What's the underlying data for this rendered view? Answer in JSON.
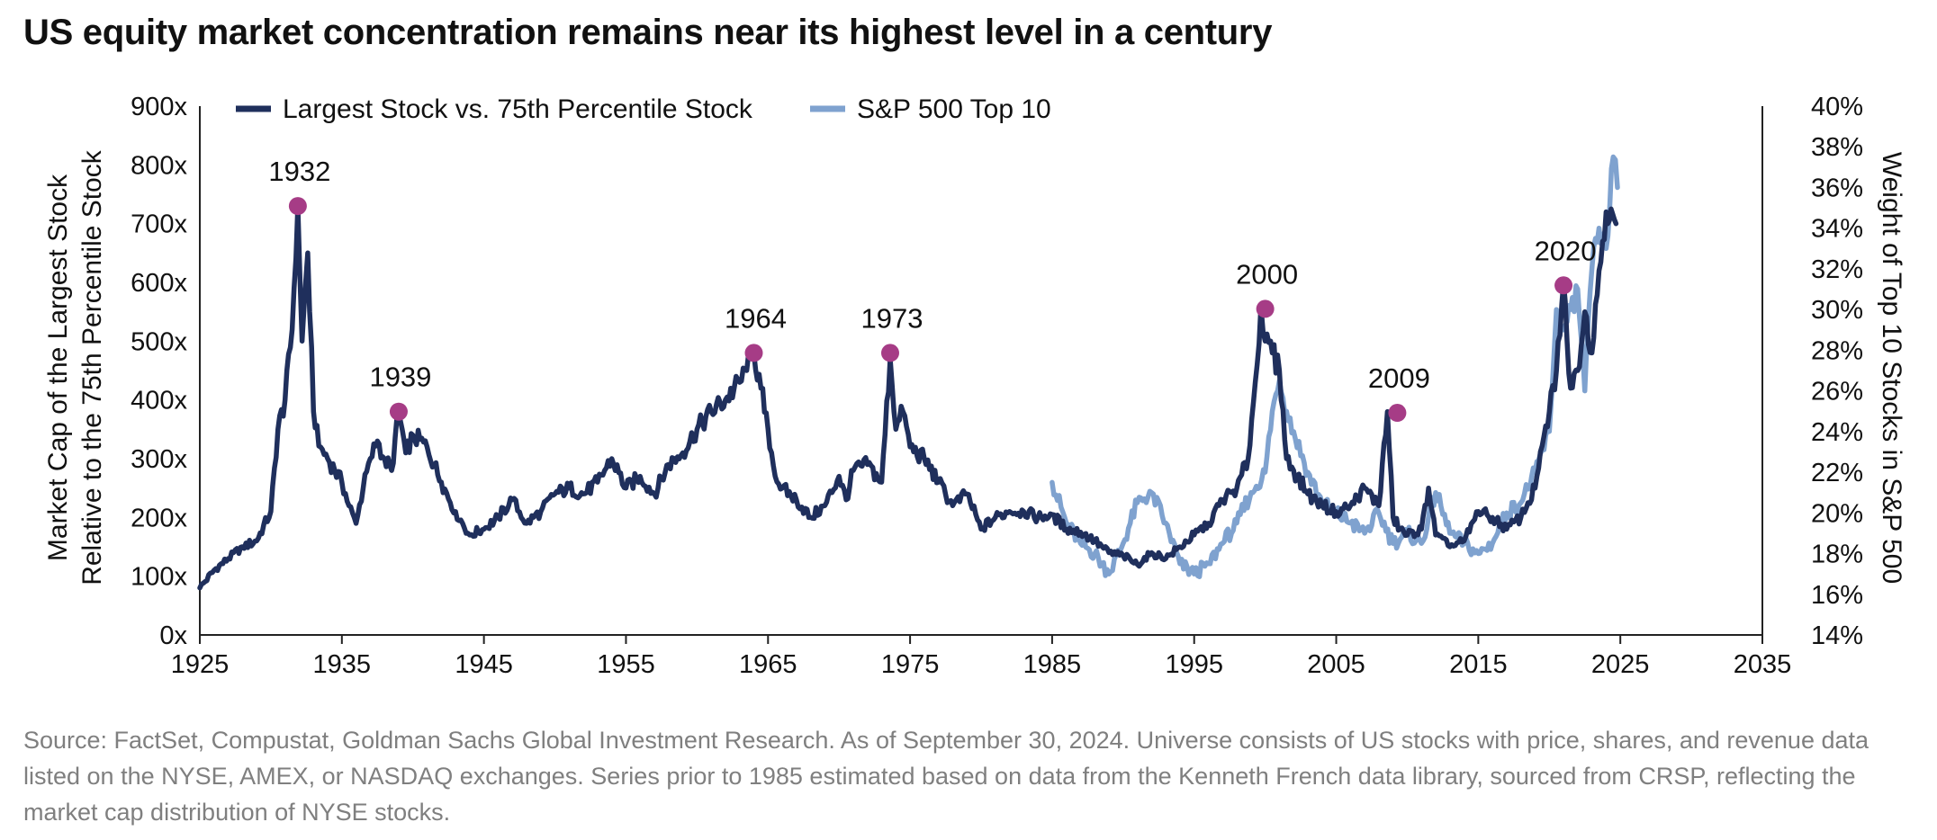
{
  "title": "US equity market concentration remains near its highest level in a century",
  "source": "Source: FactSet, Compustat, Goldman Sachs Global Investment Research. As of September 30, 2024. Universe consists of US stocks with price, shares, and revenue data listed on the NYSE, AMEX, or NASDAQ exchanges. Series prior to 1985 estimated based on data from the Kenneth French data library, sourced from CRSP, reflecting the market cap distribution of NYSE stocks.",
  "colors": {
    "dark_series": "#1f2f5c",
    "light_series": "#7fa2cf",
    "peak_marker": "#a63c86",
    "axis": "#222222"
  },
  "chart_data": {
    "type": "line",
    "title": "US equity market concentration remains near its highest level in a century",
    "xlabel": "",
    "xlim": [
      1925,
      2035
    ],
    "x_ticks": [
      "1925",
      "1935",
      "1945",
      "1955",
      "1965",
      "1975",
      "1985",
      "1995",
      "2005",
      "2015",
      "2025",
      "2035"
    ],
    "ylabel_left": "Market Cap of the Largest Stock Relative to the 75th Percentile Stock",
    "ylabel_left_lines": [
      "Market Cap of the Largest Stock",
      "Relative to the 75th Percentile Stock"
    ],
    "ylim_left": [
      0,
      900
    ],
    "y_ticks_left": [
      "0x",
      "100x",
      "200x",
      "300x",
      "400x",
      "500x",
      "600x",
      "700x",
      "800x",
      "900x"
    ],
    "ylabel_right": "Weight of Top 10 Stocks in S&P 500",
    "ylim_right": [
      14,
      40
    ],
    "y_ticks_right": [
      "14%",
      "16%",
      "18%",
      "20%",
      "22%",
      "24%",
      "26%",
      "28%",
      "30%",
      "32%",
      "34%",
      "36%",
      "38%",
      "40%"
    ],
    "grid": false,
    "legend_position": "top-left",
    "series": [
      {
        "name": "Largest Stock vs. 75th Percentile Stock",
        "axis": "left",
        "color": "#1f2f5c",
        "x": [
          1925,
          1926,
          1927,
          1928,
          1929,
          1930,
          1930.5,
          1931,
          1931.5,
          1931.9,
          1932.2,
          1932.6,
          1933,
          1933.5,
          1934,
          1934.5,
          1935,
          1935.5,
          1936,
          1936.5,
          1937,
          1937.5,
          1938,
          1938.5,
          1939,
          1939.5,
          1940,
          1941,
          1942,
          1943,
          1944,
          1945,
          1946,
          1947,
          1948,
          1949,
          1950,
          1951,
          1952,
          1953,
          1954,
          1955,
          1956,
          1957,
          1958,
          1959,
          1960,
          1961,
          1962,
          1963,
          1963.5,
          1964,
          1964.5,
          1965,
          1965.5,
          1966,
          1967,
          1968,
          1969,
          1970,
          1970.5,
          1971,
          1972,
          1973,
          1973.6,
          1974,
          1974.5,
          1975,
          1976,
          1977,
          1978,
          1979,
          1980,
          1981,
          1982,
          1983,
          1984,
          1985,
          1986,
          1987,
          1988,
          1989,
          1990,
          1991,
          1992,
          1993,
          1994,
          1995,
          1996,
          1997,
          1998,
          1998.8,
          1999.3,
          1999.7,
          2000,
          2000.5,
          2001,
          2001.5,
          2002,
          2003,
          2004,
          2005,
          2006,
          2007,
          2008,
          2008.6,
          2009,
          2009.5,
          2010,
          2011,
          2011.5,
          2012,
          2013,
          2014,
          2015,
          2016,
          2017,
          2018,
          2019,
          2020,
          2020.5,
          2021,
          2021.5,
          2022,
          2022.5,
          2023,
          2023.5,
          2024,
          2024.7
        ],
        "values": [
          80,
          110,
          130,
          150,
          160,
          210,
          350,
          400,
          520,
          730,
          500,
          650,
          380,
          320,
          300,
          280,
          260,
          220,
          190,
          250,
          300,
          330,
          300,
          280,
          380,
          310,
          340,
          320,
          260,
          210,
          170,
          180,
          200,
          230,
          190,
          210,
          240,
          250,
          240,
          260,
          300,
          250,
          270,
          240,
          290,
          310,
          350,
          380,
          400,
          430,
          450,
          480,
          420,
          350,
          270,
          250,
          230,
          200,
          220,
          270,
          230,
          280,
          290,
          260,
          470,
          350,
          380,
          320,
          300,
          260,
          220,
          240,
          180,
          200,
          210,
          210,
          200,
          205,
          180,
          175,
          160,
          140,
          135,
          120,
          140,
          130,
          150,
          170,
          190,
          230,
          250,
          300,
          430,
          560,
          500,
          480,
          450,
          300,
          280,
          240,
          220,
          210,
          220,
          250,
          220,
          380,
          200,
          180,
          170,
          180,
          250,
          170,
          150,
          160,
          210,
          200,
          180,
          200,
          250,
          380,
          450,
          600,
          420,
          450,
          550,
          480,
          620,
          720,
          700
        ],
        "peaks": [
          {
            "label": "1932",
            "x": 1931.9,
            "y": 730
          },
          {
            "label": "1939",
            "x": 1939,
            "y": 380
          },
          {
            "label": "1964",
            "x": 1964,
            "y": 480
          },
          {
            "label": "1973",
            "x": 1973.6,
            "y": 480
          },
          {
            "label": "2000",
            "x": 2000,
            "y": 555
          },
          {
            "label": "2009",
            "x": 2009.3,
            "y": 378
          },
          {
            "label": "2020",
            "x": 2021,
            "y": 595
          }
        ]
      },
      {
        "name": "S&P 500 Top 10",
        "axis": "right",
        "color": "#7fa2cf",
        "x": [
          1985,
          1986,
          1987,
          1988,
          1989,
          1990,
          1991,
          1992,
          1993,
          1994,
          1995,
          1996,
          1997,
          1998,
          1999,
          2000,
          2000.5,
          2001,
          2001.5,
          2002,
          2003,
          2004,
          2005,
          2006,
          2007,
          2008,
          2009,
          2010,
          2011,
          2012,
          2013,
          2014,
          2015,
          2016,
          2017,
          2018,
          2019,
          2020,
          2020.5,
          2021,
          2021.5,
          2022,
          2022.5,
          2023,
          2023.5,
          2024,
          2024.5,
          2024.8
        ],
        "values": [
          21.5,
          19.5,
          18.5,
          18,
          17,
          18.5,
          20.5,
          21,
          19.5,
          17.5,
          17,
          17.5,
          18.5,
          19.5,
          21,
          22,
          25,
          26.5,
          25,
          24,
          22,
          20.5,
          20,
          19.5,
          19,
          20,
          18.5,
          19,
          18.5,
          21,
          19,
          18.5,
          18,
          18.5,
          20,
          20.5,
          22,
          24,
          30,
          29,
          30,
          31,
          26,
          32,
          34,
          33,
          37.5,
          36
        ]
      }
    ]
  }
}
